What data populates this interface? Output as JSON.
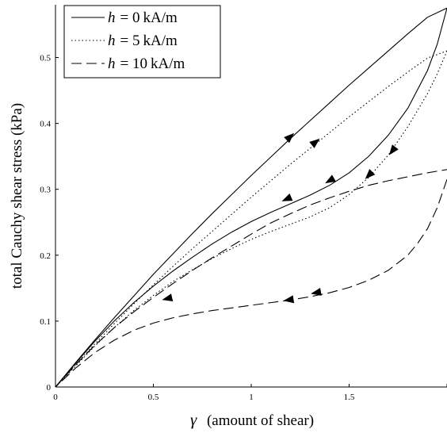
{
  "chart_data": {
    "type": "line",
    "title": "",
    "xlabel_symbol": "γ",
    "xlabel_text": "(amount of shear)",
    "ylabel": "total Cauchy shear stress (kPa)",
    "xlim": [
      0,
      2
    ],
    "ylim": [
      0,
      0.58
    ],
    "xticks": [
      0,
      0.5,
      1,
      1.5,
      2
    ],
    "xtick_labels": [
      "0",
      "0.5",
      "1",
      "1.5",
      ""
    ],
    "yticks": [
      0,
      0.1,
      0.2,
      0.3,
      0.4,
      0.5
    ],
    "ytick_labels": [
      "0",
      "0.1",
      "0.2",
      "0.3",
      "0.4",
      "0.5"
    ],
    "grid": false,
    "legend_position": "top-left",
    "series": [
      {
        "name": "h = 0 kA/m",
        "legend_var": "h",
        "legend_eq": "= 0",
        "legend_unit": "kA/m",
        "dash": "solid",
        "color": "#000000",
        "loading": {
          "x": [
            0,
            0.1,
            0.2,
            0.3,
            0.4,
            0.5,
            0.6,
            0.7,
            0.8,
            0.9,
            1.0,
            1.1,
            1.2,
            1.3,
            1.4,
            1.5,
            1.6,
            1.7,
            1.8,
            1.9,
            2.0
          ],
          "y": [
            0,
            0.036,
            0.071,
            0.105,
            0.138,
            0.171,
            0.202,
            0.233,
            0.263,
            0.292,
            0.321,
            0.349,
            0.377,
            0.404,
            0.431,
            0.458,
            0.484,
            0.51,
            0.536,
            0.561,
            0.575
          ]
        },
        "unloading": {
          "x": [
            2.0,
            1.95,
            1.9,
            1.8,
            1.7,
            1.6,
            1.5,
            1.4,
            1.3,
            1.2,
            1.1,
            1.0,
            0.9,
            0.8,
            0.7,
            0.6,
            0.5,
            0.4,
            0.3,
            0.2,
            0.1,
            0
          ],
          "y": [
            0.575,
            0.52,
            0.48,
            0.423,
            0.382,
            0.35,
            0.325,
            0.306,
            0.291,
            0.278,
            0.265,
            0.251,
            0.235,
            0.217,
            0.197,
            0.176,
            0.153,
            0.128,
            0.1,
            0.069,
            0.035,
            0
          ]
        }
      },
      {
        "name": "h = 5 kA/m",
        "legend_var": "h",
        "legend_eq": "= 5",
        "legend_unit": "kA/m",
        "dash": "dotted",
        "color": "#000000",
        "loading": {
          "x": [
            0,
            0.1,
            0.2,
            0.3,
            0.4,
            0.5,
            0.6,
            0.7,
            0.8,
            0.9,
            1.0,
            1.1,
            1.2,
            1.3,
            1.4,
            1.5,
            1.6,
            1.7,
            1.8,
            1.9,
            2.0
          ],
          "y": [
            0,
            0.033,
            0.065,
            0.096,
            0.126,
            0.155,
            0.183,
            0.21,
            0.236,
            0.262,
            0.288,
            0.313,
            0.338,
            0.362,
            0.386,
            0.41,
            0.433,
            0.456,
            0.478,
            0.499,
            0.51
          ]
        },
        "unloading": {
          "x": [
            2.0,
            1.95,
            1.9,
            1.8,
            1.7,
            1.6,
            1.5,
            1.4,
            1.3,
            1.2,
            1.1,
            1.0,
            0.9,
            0.8,
            0.7,
            0.6,
            0.5,
            0.4,
            0.3,
            0.2,
            0.1,
            0
          ],
          "y": [
            0.51,
            0.475,
            0.445,
            0.395,
            0.352,
            0.318,
            0.292,
            0.272,
            0.258,
            0.247,
            0.236,
            0.224,
            0.21,
            0.195,
            0.178,
            0.16,
            0.139,
            0.116,
            0.09,
            0.062,
            0.031,
            0
          ]
        }
      },
      {
        "name": "h = 10 kA/m",
        "legend_var": "h",
        "legend_eq": "= 10",
        "legend_unit": "kA/m",
        "dash": "dashed",
        "color": "#000000",
        "loading": {
          "x": [
            0,
            0.1,
            0.2,
            0.3,
            0.4,
            0.5,
            0.6,
            0.7,
            0.8,
            0.9,
            1.0,
            1.1,
            1.2,
            1.3,
            1.4,
            1.5,
            1.6,
            1.7,
            1.8,
            1.9,
            2.0
          ],
          "y": [
            0,
            0.033,
            0.063,
            0.09,
            0.114,
            0.136,
            0.157,
            0.177,
            0.196,
            0.214,
            0.232,
            0.249,
            0.263,
            0.276,
            0.287,
            0.297,
            0.306,
            0.313,
            0.319,
            0.325,
            0.33
          ]
        },
        "unloading": {
          "x": [
            2.0,
            1.95,
            1.9,
            1.85,
            1.8,
            1.7,
            1.6,
            1.5,
            1.4,
            1.3,
            1.2,
            1.1,
            1.0,
            0.9,
            0.8,
            0.7,
            0.6,
            0.5,
            0.4,
            0.3,
            0.2,
            0.1,
            0
          ],
          "y": [
            0.315,
            0.272,
            0.24,
            0.218,
            0.2,
            0.177,
            0.162,
            0.151,
            0.143,
            0.137,
            0.132,
            0.128,
            0.124,
            0.12,
            0.116,
            0.111,
            0.105,
            0.097,
            0.086,
            0.071,
            0.052,
            0.028,
            0
          ]
        }
      }
    ],
    "arrows": [
      {
        "series": 0,
        "x": 1.2,
        "y": 0.38,
        "direction": "up"
      },
      {
        "series": 1,
        "x": 1.33,
        "y": 0.372,
        "direction": "up"
      },
      {
        "series": 0,
        "x": 1.4,
        "y": 0.313,
        "direction": "down"
      },
      {
        "series": 0,
        "x": 1.18,
        "y": 0.285,
        "direction": "down"
      },
      {
        "series": 1,
        "x": 1.72,
        "y": 0.358,
        "direction": "down"
      },
      {
        "series": 1,
        "x": 1.6,
        "y": 0.321,
        "direction": "down"
      },
      {
        "series": 2,
        "x": 1.33,
        "y": 0.143,
        "direction": "down"
      },
      {
        "series": 2,
        "x": 1.19,
        "y": 0.132,
        "direction": "down"
      },
      {
        "series": 2,
        "x": 0.57,
        "y": 0.134,
        "direction": "down"
      }
    ]
  }
}
